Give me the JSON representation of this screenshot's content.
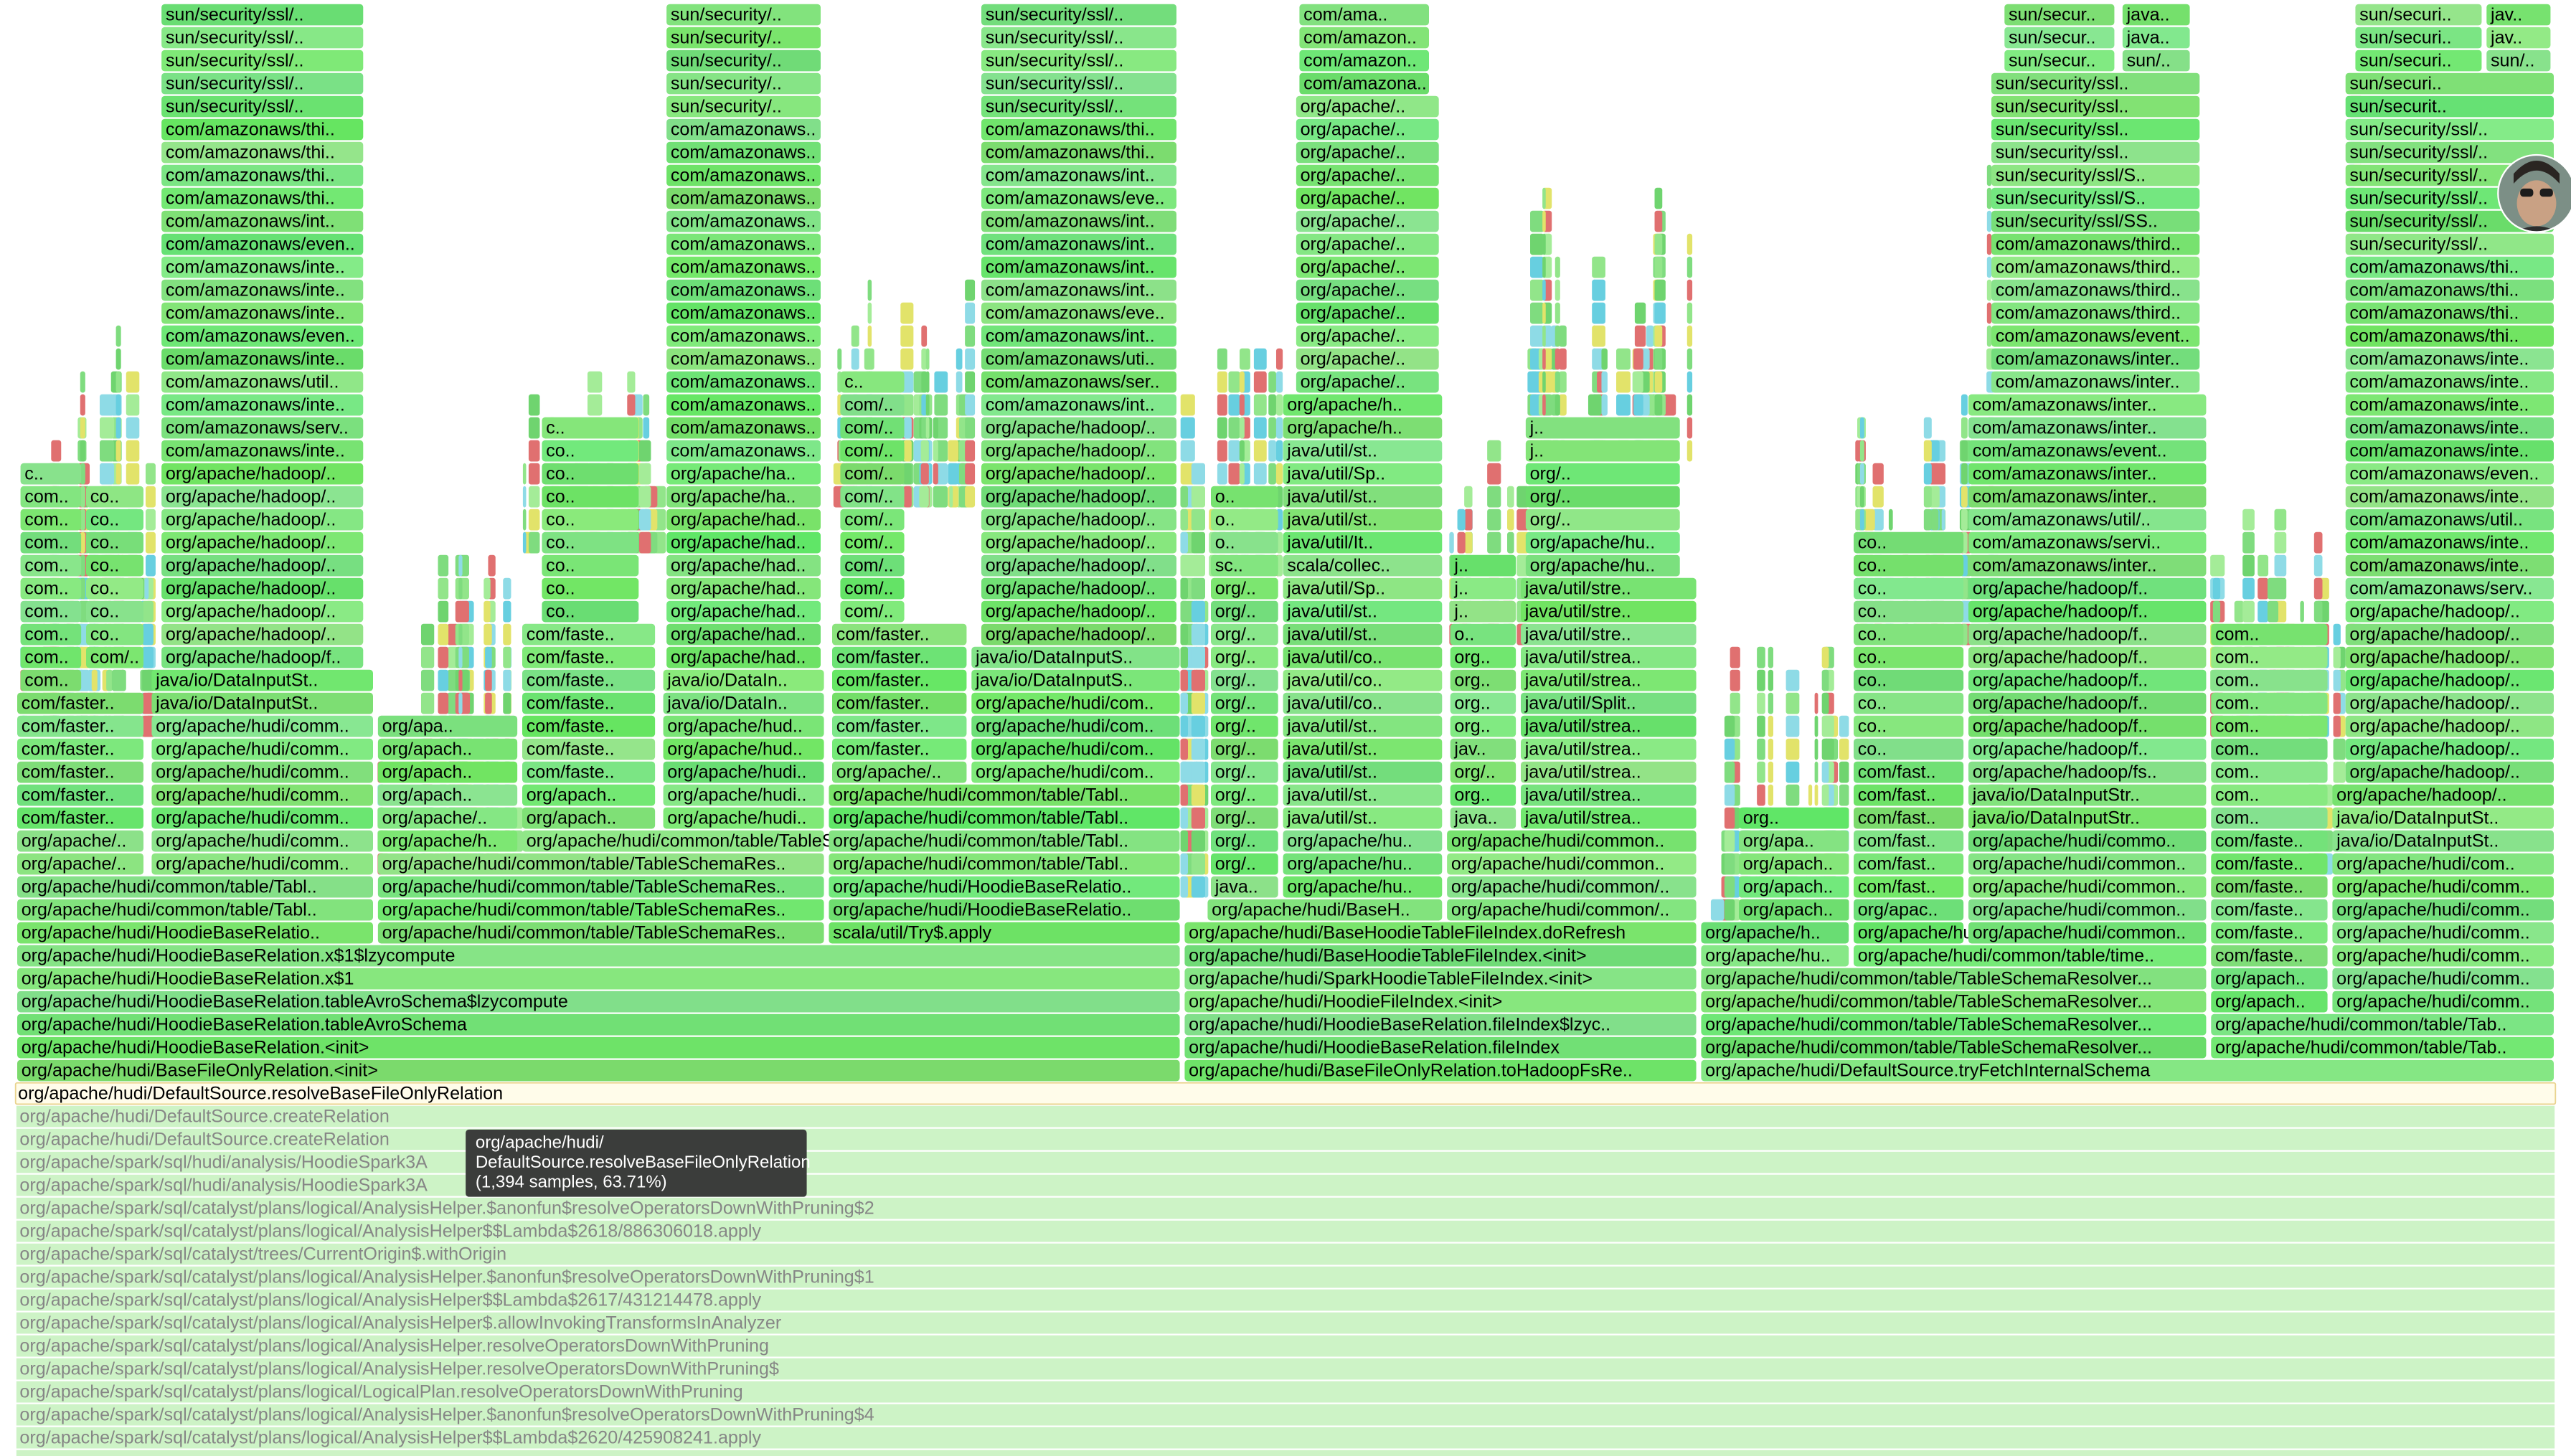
{
  "flame_graph": {
    "root": "org/apache/hudi/DefaultSource.resolveBaseFileOnlyRelation",
    "callers": [
      "org/apache/hudi/DefaultSource.createRelation",
      "org/apache/hudi/DefaultSource.createRelation",
      "org/apache/spark/sql/hudi/analysis/HoodieSpark3A",
      "org/apache/spark/sql/hudi/analysis/HoodieSpark3A",
      "org/apache/spark/sql/catalyst/plans/logical/AnalysisHelper.$anonfun$resolveOperatorsDownWithPruning$2",
      "org/apache/spark/sql/catalyst/plans/logical/AnalysisHelper$$Lambda$2618/886306018.apply",
      "org/apache/spark/sql/catalyst/trees/CurrentOrigin$.withOrigin",
      "org/apache/spark/sql/catalyst/plans/logical/AnalysisHelper.$anonfun$resolveOperatorsDownWithPruning$1",
      "org/apache/spark/sql/catalyst/plans/logical/AnalysisHelper$$Lambda$2617/431214478.apply",
      "org/apache/spark/sql/catalyst/plans/logical/AnalysisHelper$.allowInvokingTransformsInAnalyzer",
      "org/apache/spark/sql/catalyst/plans/logical/AnalysisHelper.resolveOperatorsDownWithPruning",
      "org/apache/spark/sql/catalyst/plans/logical/AnalysisHelper.resolveOperatorsDownWithPruning$",
      "org/apache/spark/sql/catalyst/plans/logical/LogicalPlan.resolveOperatorsDownWithPruning",
      "org/apache/spark/sql/catalyst/plans/logical/AnalysisHelper.$anonfun$resolveOperatorsDownWithPruning$4",
      "org/apache/spark/sql/catalyst/plans/logical/AnalysisHelper$$Lambda$2620/425908241.apply"
    ],
    "stacks": [
      {
        "frames": [
          "org/apache/hudi/BaseFileOnlyRelation.<init>",
          "org/apache/hudi/HoodieBaseRelation.<init>",
          "org/apache/hudi/HoodieBaseRelation.tableAvroSchema",
          "org/apache/hudi/HoodieBaseRelation.tableAvroSchema$lzycompute",
          "org/apache/hudi/HoodieBaseRelation.x$1",
          "org/apache/hudi/HoodieBaseRelation.x$1$lzycompute"
        ]
      },
      {
        "frames": [
          "org/apache/hudi/HoodieBaseRelatio..",
          "org/apache/hudi/common/table/Tabl..",
          "org/apache/hudi/common/table/Tabl.."
        ]
      },
      {
        "frames": [
          "org/apache/..",
          "org/apache/..",
          "com/faster..",
          "com/faster..",
          "com/faster..",
          "com/faster..",
          "com/faster..",
          "com/faster.."
        ]
      },
      {
        "frames": [
          "com..",
          "com..",
          "com..",
          "com..",
          "com..",
          "com..",
          "com..",
          "com..",
          "com..",
          "c.."
        ]
      },
      {
        "frames": [
          "com/..",
          "co..",
          "co..",
          "co..",
          "co..",
          "co..",
          "co..",
          "co.."
        ]
      },
      {
        "frames": [
          "org/apache/hudi/comm..",
          "org/apache/hudi/comm..",
          "org/apache/hudi/comm..",
          "org/apache/hudi/comm..",
          "org/apache/hudi/comm..",
          "org/apache/hudi/comm..",
          "org/apache/hudi/comm..",
          "java/io/DataInputSt..",
          "java/io/DataInputSt..",
          "org/apache/hadoop/f..",
          "org/apache/hadoop/..",
          "org/apache/hadoop/..",
          "org/apache/hadoop/..",
          "org/apache/hadoop/..",
          "org/apache/hadoop/..",
          "org/apache/hadoop/..",
          "org/apache/hadoop/..",
          "org/apache/hadoop/..",
          "com/amazonaws/inte..",
          "com/amazonaws/serv..",
          "com/amazonaws/inte..",
          "com/amazonaws/util..",
          "com/amazonaws/inte..",
          "com/amazonaws/even..",
          "com/amazonaws/inte..",
          "com/amazonaws/inte..",
          "com/amazonaws/inte..",
          "com/amazonaws/even..",
          "com/amazonaws/int..",
          "com/amazonaws/thi..",
          "com/amazonaws/thi..",
          "com/amazonaws/thi..",
          "com/amazonaws/thi..",
          "sun/security/ssl/..",
          "sun/security/ssl/..",
          "sun/security/ssl/..",
          "sun/security/ssl/..",
          "sun/security/ssl/.."
        ]
      },
      {
        "frames": [
          "org/apache/hudi/common/table/TableSchemaRes..",
          "org/apache/hudi/common/table/TableSchemaRes..",
          "org/apache/hudi/common/table/TableSchemaRes..",
          "org/apache/hudi/common/table/TableSchemaRes.."
        ]
      },
      {
        "frames": [
          "org/apache/h..",
          "org/apache/..",
          "org/apach..",
          "org/apach..",
          "org/apach..",
          "org/apa.."
        ]
      },
      {
        "frames": [
          "org/apache/hudi/common/table/TableSchemaRes.."
        ]
      },
      {
        "frames": [
          "org/apach..",
          "org/apach..",
          "com/faste..",
          "com/faste..",
          "com/faste..",
          "com/faste..",
          "com/faste..",
          "com/faste..",
          "com/faste..",
          "co..",
          "co..",
          "co..",
          "co..",
          "co..",
          "co..",
          "co..",
          "co..",
          "c.."
        ]
      },
      {
        "frames": [
          "org/apache/hudi..",
          "org/apache/hudi..",
          "org/apache/hudi..",
          "org/apache/hud..",
          "org/apache/hud..",
          "java/io/DataIn..",
          "java/io/DataIn..",
          "org/apache/had..",
          "org/apache/had..",
          "org/apache/had..",
          "org/apache/had..",
          "org/apache/had..",
          "org/apache/had..",
          "org/apache/had..",
          "org/apache/ha..",
          "org/apache/ha..",
          "com/amazonaws..",
          "com/amazonaws..",
          "com/amazonaws..",
          "com/amazonaws..",
          "com/amazonaws..",
          "com/amazonaws..",
          "com/amazonaws..",
          "com/amazonaws..",
          "com/amazonaws..",
          "com/amazonaws..",
          "com/amazonaws..",
          "com/amazonaws..",
          "com/amazonaws..",
          "com/amazonaws..",
          "com/amazonaws..",
          "sun/security/..",
          "sun/security/..",
          "sun/security/..",
          "sun/security/..",
          "sun/security/.."
        ]
      },
      {
        "frames": [
          "scala/util/Try$.apply",
          "org/apache/hudi/HoodieBaseRelatio..",
          "org/apache/hudi/HoodieBaseRelatio..",
          "org/apache/hudi/common/table/Tabl..",
          "org/apache/hudi/common/table/Tabl..",
          "org/apache/hudi/common/table/Tabl..",
          "org/apache/hudi/common/table/Tabl.."
        ]
      },
      {
        "frames": [
          "org/apache/..",
          "com/faster..",
          "com/faster..",
          "com/faster..",
          "com/faster..",
          "com/faster..",
          "com/faster..",
          "com/..",
          "com/..",
          "com/..",
          "com/..",
          "com/..",
          "com/..",
          "com/..",
          "com/..",
          "com/..",
          "com/..",
          "c.."
        ]
      },
      {
        "frames": [
          "org/apache/hudi/com..",
          "org/apache/hudi/com..",
          "org/apache/hudi/com..",
          "org/apache/hudi/com..",
          "java/io/DataInputS..",
          "java/io/DataInputS..",
          "org/apache/hadoop/..",
          "org/apache/hadoop/..",
          "org/apache/hadoop/..",
          "org/apache/hadoop/..",
          "org/apache/hadoop/..",
          "org/apache/hadoop/..",
          "org/apache/hadoop/..",
          "org/apache/hadoop/..",
          "org/apache/hadoop/..",
          "org/apache/hadoop/..",
          "com/amazonaws/int..",
          "com/amazonaws/ser..",
          "com/amazonaws/uti..",
          "com/amazonaws/int..",
          "com/amazonaws/eve..",
          "com/amazonaws/int..",
          "com/amazonaws/int..",
          "com/amazonaws/int..",
          "com/amazonaws/int..",
          "com/amazonaws/eve..",
          "com/amazonaws/int..",
          "com/amazonaws/thi..",
          "com/amazonaws/thi..",
          "sun/security/ssl/..",
          "sun/security/ssl/..",
          "sun/security/ssl/..",
          "sun/security/ssl/..",
          "sun/security/ssl/.."
        ]
      },
      {
        "frames": [
          "org/apache/hudi/BaseFileOnlyRelation.toHadoopFsRe..",
          "org/apache/hudi/HoodieBaseRelation.fileIndex",
          "org/apache/hudi/HoodieBaseRelation.fileIndex$lzyc..",
          "org/apache/hudi/HoodieFileIndex.<init>",
          "org/apache/hudi/SparkHoodieTableFileIndex.<init>",
          "org/apache/hudi/BaseHoodieTableFileIndex.<init>",
          "org/apache/hudi/BaseHoodieTableFileIndex.doRefresh"
        ]
      },
      {
        "frames": [
          "org/apache/hudi/BaseH.."
        ]
      },
      {
        "frames": [
          "java..",
          "org/..",
          "org/..",
          "org/..",
          "org/..",
          "org/..",
          "org/..",
          "org/..",
          "org/..",
          "org/..",
          "org/..",
          "org/..",
          "org/..",
          "org/..",
          "sc..",
          "o..",
          "o..",
          "o.."
        ]
      },
      {
        "frames": [
          "org/apache/hu..",
          "org/apache/hu..",
          "org/apache/hu..",
          "java/util/st..",
          "java/util/st..",
          "java/util/st..",
          "java/util/st..",
          "java/util/st..",
          "java/util/co..",
          "java/util/co..",
          "java/util/co..",
          "java/util/st..",
          "java/util/st..",
          "java/util/Sp..",
          "scala/collec..",
          "java/util/It..",
          "java/util/st..",
          "java/util/st..",
          "java/util/Sp..",
          "java/util/st..",
          "org/apache/h..",
          "org/apache/h..",
          "org/apache/..",
          "org/apache/..",
          "org/apache/..",
          "org/apache/..",
          "org/apache/..",
          "org/apache/..",
          "org/apache/..",
          "org/apache/..",
          "org/apache/..",
          "org/apache/..",
          "org/apache/..",
          "org/apache/..",
          "org/apache/..",
          "com/amazona..",
          "com/amazon..",
          "com/amazon..",
          "com/ama.."
        ]
      },
      {
        "frames": [
          "org/apache/hudi/common/..",
          "org/apache/hudi/common/..",
          "org/apache/hudi/common..",
          "org/apache/hudi/common.."
        ]
      },
      {
        "frames": [
          "java..",
          "org..",
          "org/..",
          "jav..",
          "org..",
          "org..",
          "org..",
          "org..",
          "o..",
          "j..",
          "j..",
          "j.."
        ]
      },
      {
        "frames": [
          "java/util/strea..",
          "java/util/strea..",
          "java/util/strea..",
          "java/util/strea..",
          "java/util/strea..",
          "java/util/Split..",
          "java/util/strea..",
          "java/util/strea..",
          "java/util/stre..",
          "java/util/stre..",
          "java/util/stre..",
          "org/apache/hu..",
          "org/apache/hu..",
          "org/..",
          "org/..",
          "org/..",
          "j..",
          "j.."
        ]
      },
      {
        "frames": [
          "org/apache/hudi/DefaultSource.tryFetchInternalSchema"
        ]
      },
      {
        "frames": [
          "org/apache/hudi/common/table/TableSchemaResolver...",
          "org/apache/hudi/common/table/TableSchemaResolver...",
          "org/apache/hudi/common/table/TableSchemaResolver...",
          "org/apache/hudi/common/table/TableSchemaResolver..."
        ]
      },
      {
        "frames": [
          "org/apache/hudi/common/table/Tab..",
          "org/apache/hudi/common/table/Tab.."
        ]
      },
      {
        "frames": [
          "org/apache/hu..",
          "org/apache/h.."
        ]
      },
      {
        "frames": [
          "org/apach..",
          "org/apach..",
          "org/apach..",
          "org/apa..",
          "org.."
        ]
      },
      {
        "frames": [
          "org/apache/hudi/common/table/time.."
        ]
      },
      {
        "frames": [
          "org/apache/hu..",
          "org/apac..",
          "com/fast..",
          "com/fast..",
          "com/fast..",
          "com/fast..",
          "com/fast..",
          "com/fast..",
          "co..",
          "co..",
          "co..",
          "co..",
          "co..",
          "co..",
          "co..",
          "co..",
          "co..",
          "co.."
        ]
      },
      {
        "frames": [
          "org/apache/hudi/common..",
          "org/apache/hudi/common..",
          "org/apache/hudi/common..",
          "org/apache/hudi/common..",
          "org/apache/hudi/commo..",
          "java/io/DataInputStr..",
          "java/io/DataInputStr..",
          "org/apache/hadoop/fs..",
          "org/apache/hadoop/f..",
          "org/apache/hadoop/f..",
          "org/apache/hadoop/f..",
          "org/apache/hadoop/f..",
          "org/apache/hadoop/f..",
          "org/apache/hadoop/f..",
          "org/apache/hadoop/f..",
          "org/apache/hadoop/f..",
          "com/amazonaws/inter..",
          "com/amazonaws/servi..",
          "com/amazonaws/util/..",
          "com/amazonaws/inter..",
          "com/amazonaws/inter..",
          "com/amazonaws/event..",
          "com/amazonaws/inter..",
          "com/amazonaws/inter..",
          "com/amazonaws/inter..",
          "com/amazonaws/inter..",
          "com/amazonaws/event..",
          "com/amazonaws/third..",
          "com/amazonaws/third..",
          "com/amazonaws/third..",
          "com/amazonaws/third..",
          "sun/security/ssl/SS..",
          "sun/security/ssl/S..",
          "sun/security/ssl/S..",
          "sun/security/ssl..",
          "sun/security/ssl..",
          "sun/security/ssl..",
          "sun/security/ssl..",
          "sun/secur..",
          "sun/secur..",
          "sun/secur.."
        ]
      },
      {
        "frames": [
          "sun/..",
          "java..",
          "java.."
        ]
      },
      {
        "frames": [
          "org/apach..",
          "org/apach..",
          "com/faste..",
          "com/faste..",
          "com/faste..",
          "com/faste..",
          "com/faste..",
          "com/faste..",
          "com..",
          "com..",
          "com..",
          "com..",
          "com..",
          "com..",
          "com..",
          "com..",
          "com.."
        ]
      },
      {
        "frames": [
          "org/apache/hudi/comm..",
          "org/apache/hudi/comm..",
          "org/apache/hudi/comm..",
          "org/apache/hudi/comm..",
          "org/apache/hudi/comm..",
          "org/apache/hudi/comm..",
          "org/apache/hudi/com..",
          "java/io/DataInputSt..",
          "java/io/DataInputSt..",
          "org/apache/hadoop/..",
          "org/apache/hadoop/..",
          "org/apache/hadoop/..",
          "org/apache/hadoop/..",
          "org/apache/hadoop/..",
          "org/apache/hadoop/..",
          "org/apache/hadoop/..",
          "org/apache/hadoop/..",
          "org/apache/hadoop/..",
          "com/amazonaws/serv..",
          "com/amazonaws/inte..",
          "com/amazonaws/inte..",
          "com/amazonaws/util..",
          "com/amazonaws/inte..",
          "com/amazonaws/even..",
          "com/amazonaws/inte..",
          "com/amazonaws/inte..",
          "com/amazonaws/inte..",
          "com/amazonaws/inte..",
          "com/amazonaws/inte..",
          "com/amazonaws/thi..",
          "com/amazonaws/thi..",
          "com/amazonaws/thi..",
          "com/amazonaws/thi..",
          "sun/security/ssl/..",
          "sun/security/ssl/..",
          "sun/security/ssl/..",
          "sun/security/ssl/..",
          "sun/security/ssl/..",
          "sun/security/ssl/..",
          "sun/securit..",
          "sun/securi..",
          "sun/securi..",
          "sun/securi..",
          "sun/securi.."
        ]
      },
      {
        "frames": [
          "sun/..",
          "jav..",
          "jav.."
        ]
      }
    ]
  },
  "tooltip": {
    "lines": [
      "org/apache/hudi/",
      "DefaultSource.resolveBaseFileOnlyRelation",
      "(1,394 samples, 63.71%)"
    ]
  }
}
